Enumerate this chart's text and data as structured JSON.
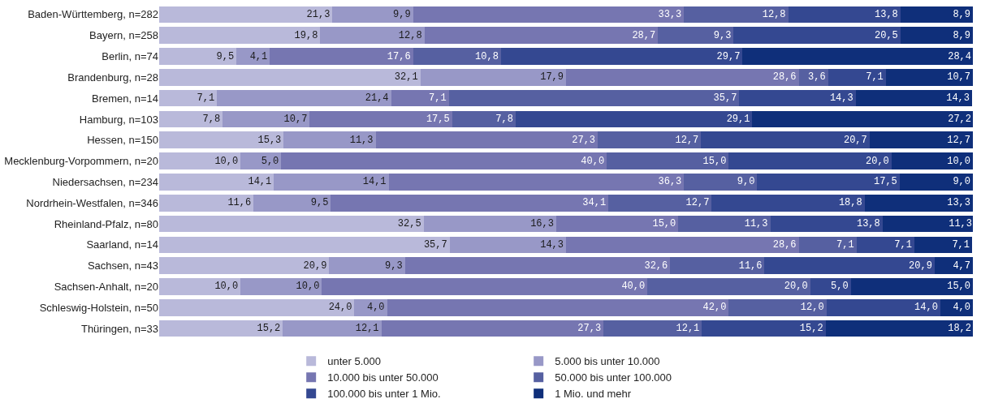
{
  "chart_data": {
    "type": "bar",
    "orientation": "horizontal",
    "stacked": true,
    "legend": "bottom",
    "xlim": [
      0,
      100
    ],
    "categories": [
      "Baden-Württemberg, n=282",
      "Bayern, n=258",
      "Berlin, n=74",
      "Brandenburg, n=28",
      "Bremen, n=14",
      "Hamburg, n=103",
      "Hessen, n=150",
      "Mecklenburg-Vorpommern, n=20",
      "Niedersachsen, n=234",
      "Nordrhein-Westfalen, n=346",
      "Rheinland-Pfalz, n=80",
      "Saarland, n=14",
      "Sachsen, n=43",
      "Sachsen-Anhalt, n=20",
      "Schleswig-Holstein, n=50",
      "Thüringen, n=33"
    ],
    "series": [
      {
        "name": "unter 5.000",
        "color": "#b9b9da",
        "values": [
          21.3,
          19.8,
          9.5,
          32.1,
          7.1,
          7.8,
          15.3,
          10.0,
          14.1,
          11.6,
          32.5,
          35.7,
          20.9,
          10.0,
          24.0,
          15.2
        ],
        "value_labels": [
          "21,3",
          "19,8",
          "9,5",
          "32,1",
          "7,1",
          "7,8",
          "15,3",
          "10,0",
          "14,1",
          "11,6",
          "32,5",
          "35,7",
          "20,9",
          "10,0",
          "24,0",
          "15,2"
        ]
      },
      {
        "name": "5.000 bis unter 10.000",
        "color": "#9898c7",
        "values": [
          9.9,
          12.8,
          4.1,
          17.9,
          21.4,
          10.7,
          11.3,
          5.0,
          14.1,
          9.5,
          16.3,
          14.3,
          9.3,
          10.0,
          4.0,
          12.1
        ],
        "value_labels": [
          "9,9",
          "12,8",
          "4,1",
          "17,9",
          "21,4",
          "10,7",
          "11,3",
          "5,0",
          "14,1",
          "9,5",
          "16,3",
          "14,3",
          "9,3",
          "10,0",
          "4,0",
          "12,1"
        ]
      },
      {
        "name": "10.000 bis unter 50.000",
        "color": "#7676b1",
        "values": [
          33.3,
          28.7,
          17.6,
          28.6,
          7.1,
          17.5,
          27.3,
          40.0,
          36.3,
          34.1,
          15.0,
          28.6,
          32.6,
          40.0,
          42.0,
          27.3
        ],
        "value_labels": [
          "33,3",
          "28,7",
          "17,6",
          "28,6",
          "7,1",
          "17,5",
          "27,3",
          "40,0",
          "36,3",
          "34,1",
          "15,0",
          "28,6",
          "32,6",
          "40,0",
          "42,0",
          "27,3"
        ]
      },
      {
        "name": "50.000 bis unter 100.000",
        "color": "#5660a1",
        "values": [
          12.8,
          9.3,
          10.8,
          3.6,
          35.7,
          7.8,
          12.7,
          15.0,
          9.0,
          12.7,
          11.3,
          7.1,
          11.6,
          20.0,
          12.0,
          12.1
        ],
        "value_labels": [
          "12,8",
          "9,3",
          "10,8",
          "3,6",
          "35,7",
          "7,8",
          "12,7",
          "15,0",
          "9,0",
          "12,7",
          "11,3",
          "7,1",
          "11,6",
          "20,0",
          "12,0",
          "12,1"
        ]
      },
      {
        "name": "100.000 bis unter 1 Mio.",
        "color": "#344891",
        "values": [
          13.8,
          20.5,
          29.7,
          7.1,
          14.3,
          29.1,
          20.7,
          20.0,
          17.5,
          18.8,
          13.8,
          7.1,
          20.9,
          5.0,
          14.0,
          15.2
        ],
        "value_labels": [
          "13,8",
          "20,5",
          "29,7",
          "7,1",
          "14,3",
          "29,1",
          "20,7",
          "20,0",
          "17,5",
          "18,8",
          "13,8",
          "7,1",
          "20,9",
          "5,0",
          "14,0",
          "15,2"
        ]
      },
      {
        "name": "1 Mio. und mehr",
        "color": "#0f2f7a",
        "values": [
          8.9,
          8.9,
          28.4,
          10.7,
          14.3,
          27.2,
          12.7,
          10.0,
          9.0,
          13.3,
          11.3,
          7.1,
          4.7,
          15.0,
          4.0,
          18.2
        ],
        "value_labels": [
          "8,9",
          "8,9",
          "28,4",
          "10,7",
          "14,3",
          "27,2",
          "12,7",
          "10,0",
          "9,0",
          "13,3",
          "11,3",
          "7,1",
          "4,7",
          "15,0",
          "4,0",
          "18,2"
        ]
      }
    ]
  }
}
